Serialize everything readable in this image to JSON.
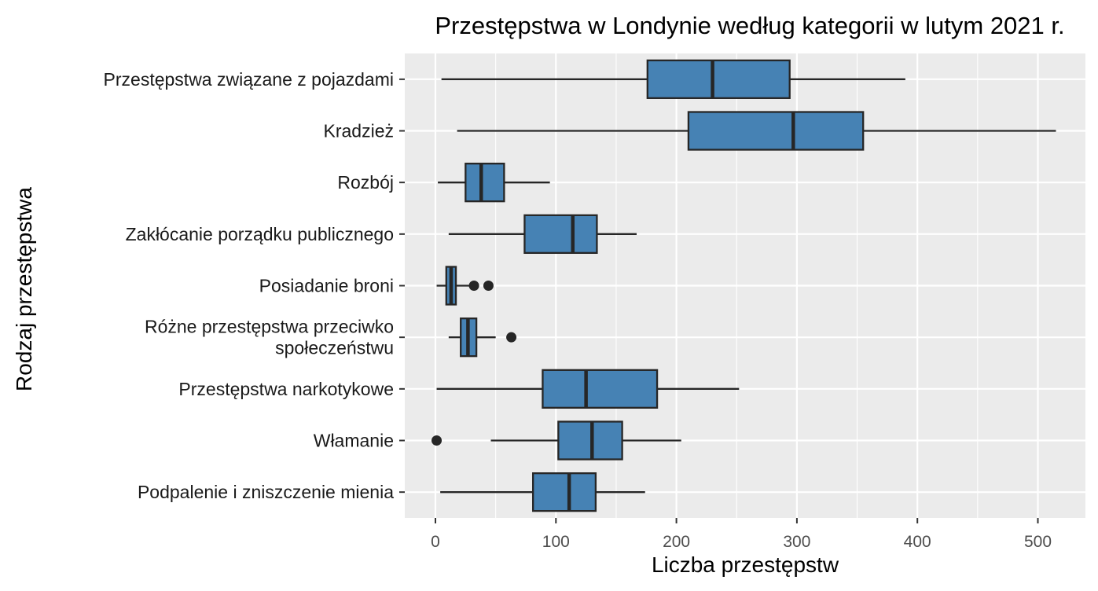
{
  "chart_data": {
    "type": "boxplot",
    "orientation": "horizontal",
    "title": "Przestępstwa w Londynie według kategorii w lutym 2021 r.",
    "xlabel": "Liczba przestępstw",
    "ylabel": "Rodzaj przestępstwa",
    "xlim": [
      -25,
      540
    ],
    "x_ticks": [
      0,
      100,
      200,
      300,
      400,
      500
    ],
    "grid": true,
    "box_color": "#4682B4",
    "panel_color": "#EBEBEB",
    "categories": [
      {
        "label_lines": [
          "Przestępstwa związane z pojazdami"
        ],
        "whisker_low": 5,
        "q1": 176,
        "median": 230,
        "q3": 294,
        "whisker_high": 390,
        "outliers": []
      },
      {
        "label_lines": [
          "Kradzież"
        ],
        "whisker_low": 18,
        "q1": 210,
        "median": 297,
        "q3": 355,
        "whisker_high": 515,
        "outliers": []
      },
      {
        "label_lines": [
          "Rozbój"
        ],
        "whisker_low": 2,
        "q1": 25,
        "median": 38,
        "q3": 57,
        "whisker_high": 95,
        "outliers": []
      },
      {
        "label_lines": [
          "Zakłócanie porządku publicznego"
        ],
        "whisker_low": 11,
        "q1": 74,
        "median": 114,
        "q3": 134,
        "whisker_high": 167,
        "outliers": []
      },
      {
        "label_lines": [
          "Posiadanie broni"
        ],
        "whisker_low": 1,
        "q1": 9,
        "median": 13,
        "q3": 17,
        "whisker_high": 28,
        "outliers": [
          32,
          44
        ]
      },
      {
        "label_lines": [
          "Różne przestępstwa przeciwko",
          "społeczeństwu"
        ],
        "whisker_low": 11,
        "q1": 21,
        "median": 27,
        "q3": 34,
        "whisker_high": 50,
        "outliers": [
          63
        ]
      },
      {
        "label_lines": [
          "Przestępstwa narkotykowe"
        ],
        "whisker_low": 1,
        "q1": 89,
        "median": 125,
        "q3": 184,
        "whisker_high": 252,
        "outliers": []
      },
      {
        "label_lines": [
          "Włamanie"
        ],
        "whisker_low": 46,
        "q1": 102,
        "median": 130,
        "q3": 155,
        "whisker_high": 204,
        "outliers": [
          1
        ]
      },
      {
        "label_lines": [
          "Podpalenie i zniszczenie mienia"
        ],
        "whisker_low": 4,
        "q1": 81,
        "median": 111,
        "q3": 133,
        "whisker_high": 174,
        "outliers": []
      }
    ]
  }
}
